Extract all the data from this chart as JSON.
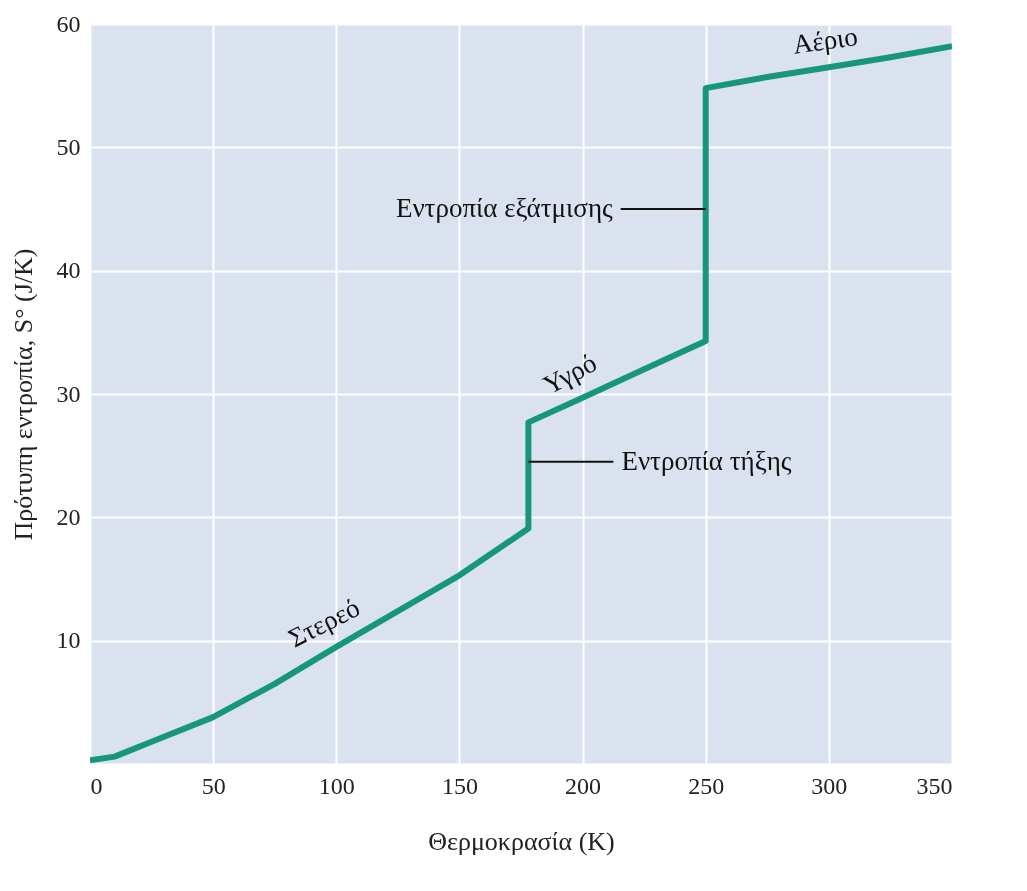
{
  "chart_data": {
    "type": "line",
    "xlabel": "Θερμοκρασία (K)",
    "ylabel": "Πρότυπη εντροπία, S° (J/K)",
    "x": [
      0,
      10,
      25,
      50,
      75,
      100,
      125,
      150,
      178,
      178,
      200,
      225,
      250,
      250,
      275,
      300,
      325,
      350
    ],
    "series": [
      {
        "color": "#17977a",
        "values": [
          0.3,
          0.6,
          1.8,
          3.8,
          6.5,
          9.5,
          12.4,
          15.3,
          19.1,
          27.7,
          29.7,
          32.0,
          34.3,
          54.8,
          55.7,
          56.5,
          57.3,
          58.2
        ]
      }
    ],
    "xlim": [
      0,
      350
    ],
    "ylim": [
      0,
      60
    ],
    "xticks": [
      0,
      50,
      100,
      150,
      200,
      250,
      300,
      350
    ],
    "yticks": [
      {
        "value": 0,
        "label": null
      },
      10,
      20,
      30,
      40,
      50,
      60
    ],
    "grid": true,
    "marker": "none",
    "line_style": "solid",
    "annotations": [
      {
        "text": "Στερεό",
        "x": 100,
        "y": 9.5
      },
      {
        "text": "Υγρό",
        "x": 200,
        "y": 29.7
      },
      {
        "text": "Αέριο",
        "x": 300,
        "y": 56.5
      },
      {
        "text": "Εντροπία εξάτμισης",
        "x": 250,
        "y": 45
      },
      {
        "text": "Εντροπία τήξης",
        "x": 178,
        "y": 24.5
      }
    ]
  }
}
